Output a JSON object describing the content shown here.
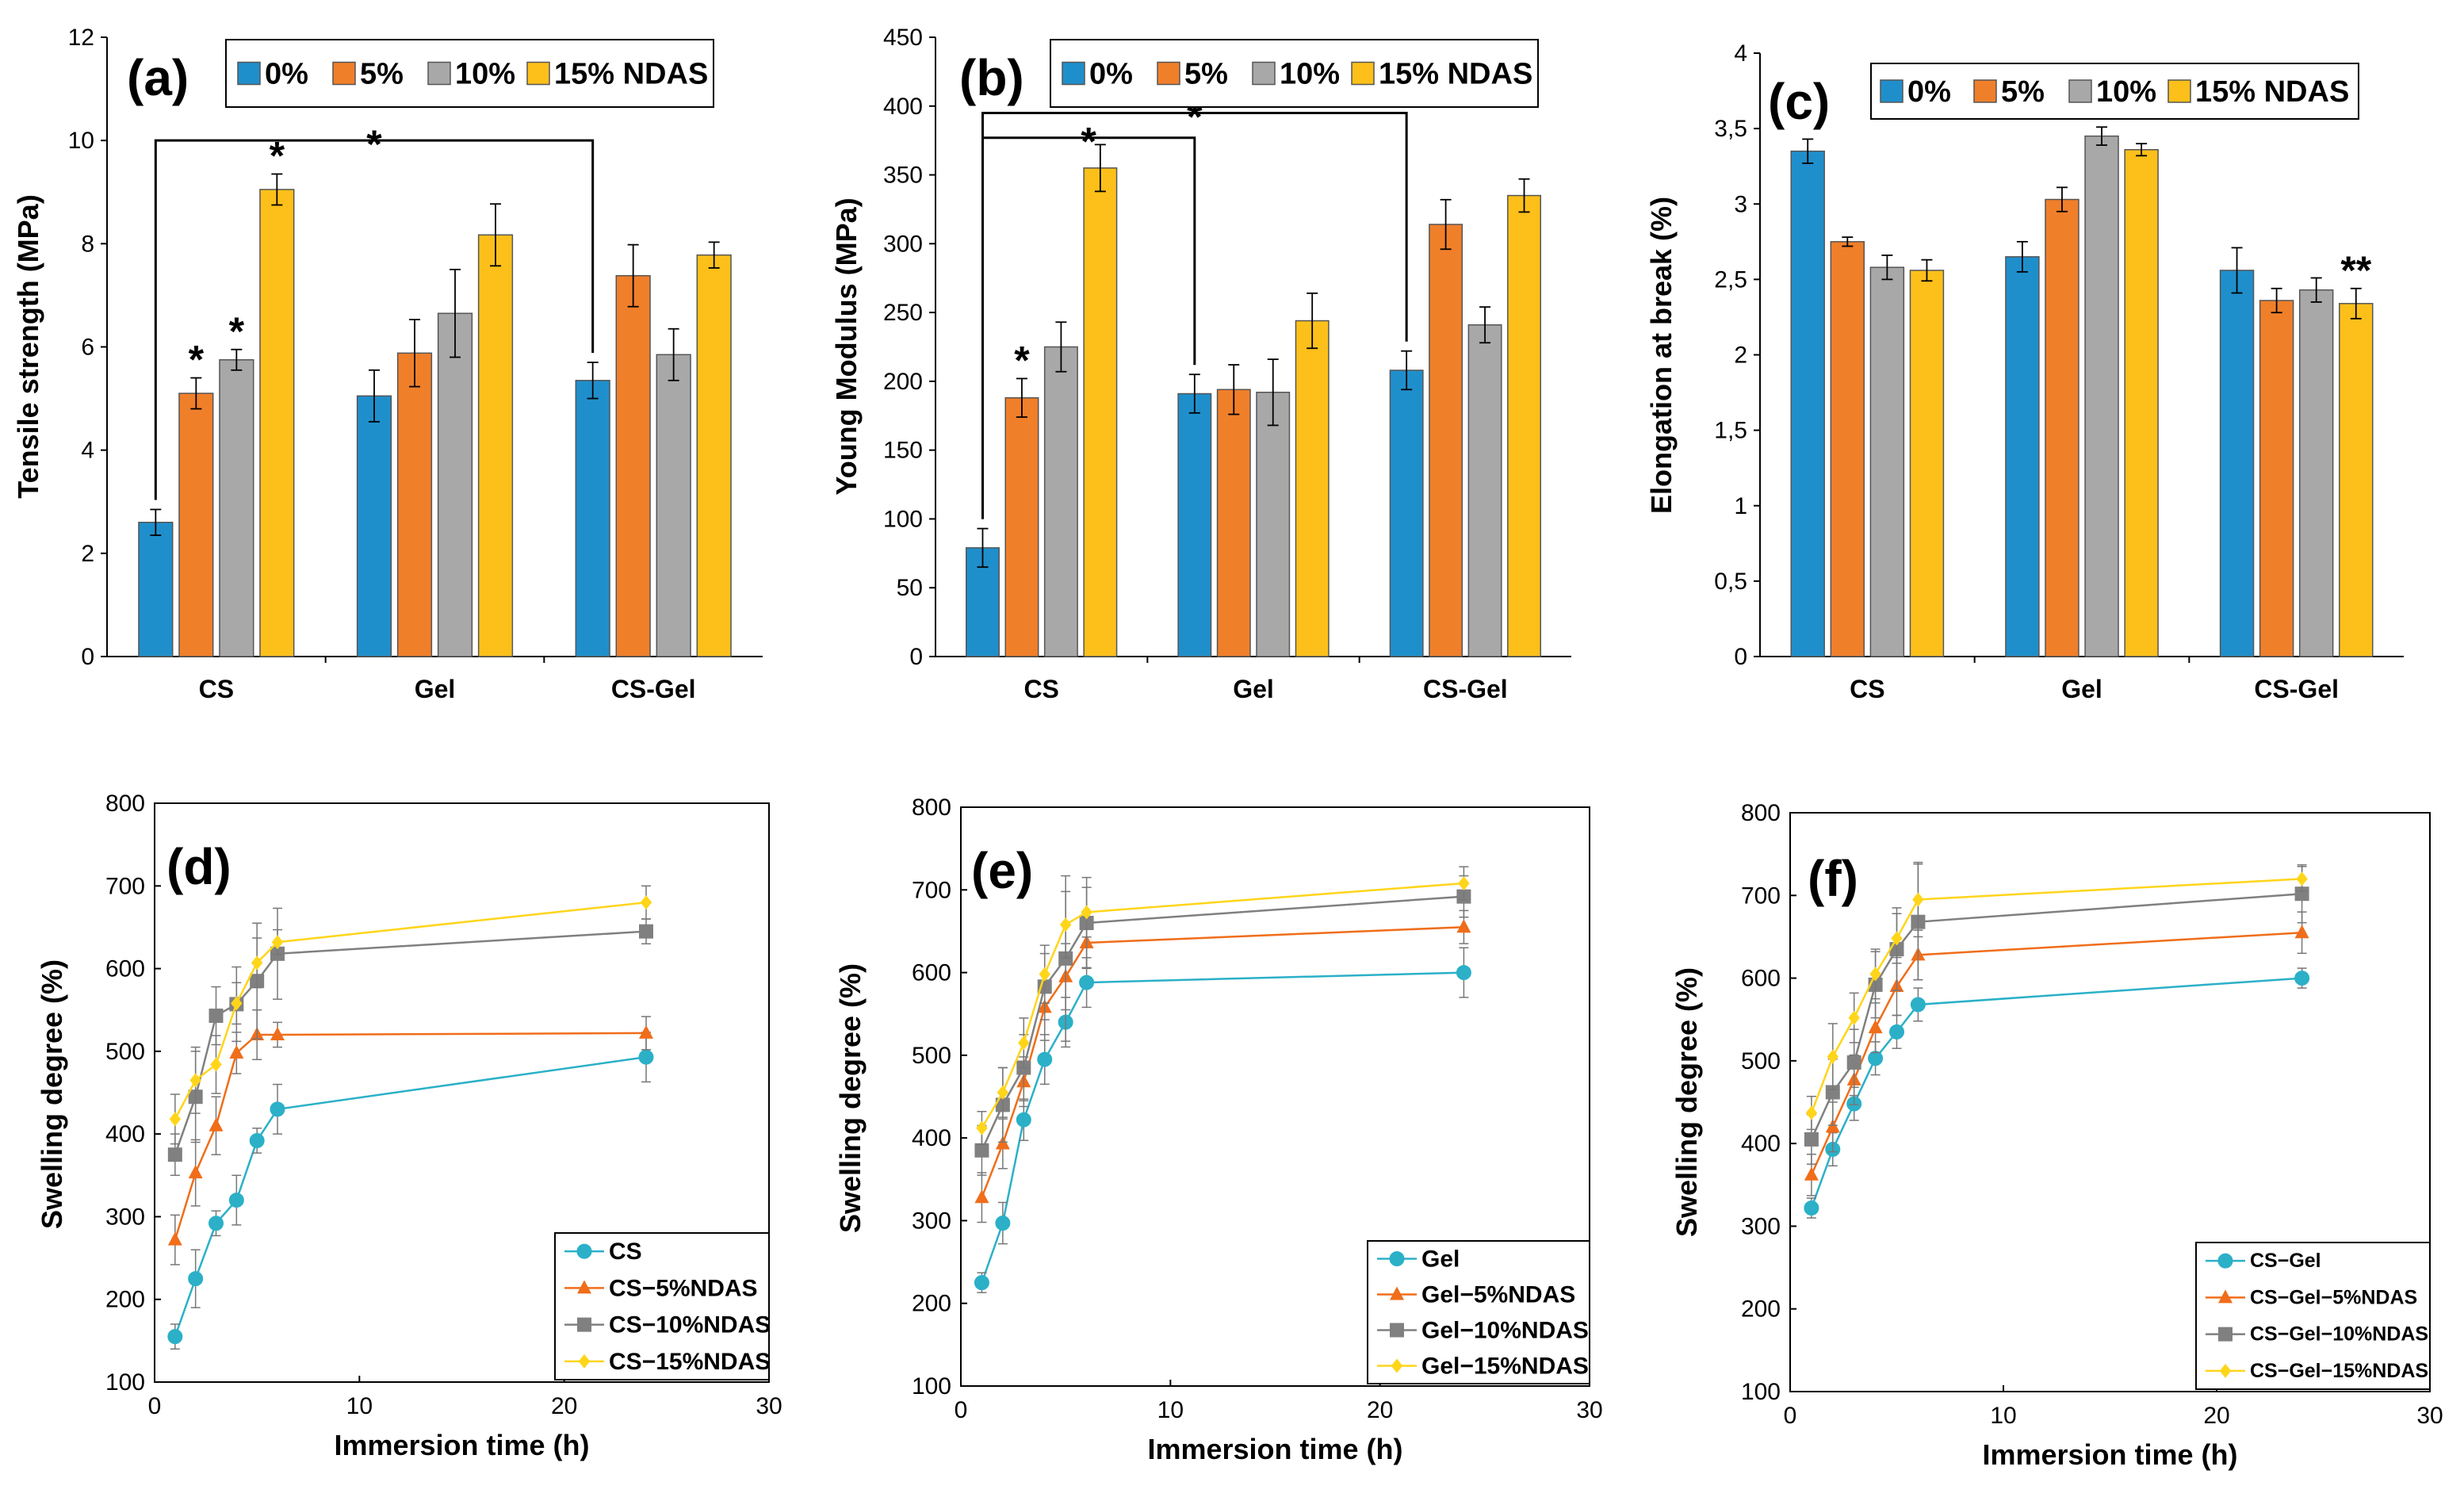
{
  "colors": {
    "c0": "#1f8fcc",
    "c5": "#f07f2a",
    "c10": "#a8a8a8",
    "c15": "#fdc01a",
    "s_base": "#2bb0c8",
    "s_5": "#f06d1a",
    "s_10": "#808080",
    "s_15": "#ffd51a"
  },
  "chart_data": [
    {
      "id": "a",
      "type": "bar",
      "label": "(a)",
      "ylabel": "Tensile strength (MPa)",
      "ylim": [
        0,
        12
      ],
      "yticks": [
        0,
        2,
        4,
        6,
        8,
        10,
        12
      ],
      "ytick_labels": [
        "0",
        "2",
        "4",
        "6",
        "8",
        "10",
        "12"
      ],
      "categories": [
        "CS",
        "Gel",
        "CS-Gel"
      ],
      "legend": [
        "0%",
        "5%",
        "10%",
        "15% NDAS"
      ],
      "series": [
        {
          "name": "0%",
          "values": [
            2.6,
            5.05,
            5.35
          ],
          "errors": [
            0.25,
            0.5,
            0.35
          ]
        },
        {
          "name": "5%",
          "values": [
            5.1,
            5.88,
            7.38
          ],
          "errors": [
            0.3,
            0.65,
            0.6
          ]
        },
        {
          "name": "10%",
          "values": [
            5.75,
            6.65,
            5.85
          ],
          "errors": [
            0.2,
            0.85,
            0.5
          ]
        },
        {
          "name": "15% NDAS",
          "values": [
            9.05,
            8.17,
            7.78
          ],
          "errors": [
            0.3,
            0.6,
            0.25
          ]
        }
      ],
      "stars": [
        {
          "group": 0,
          "series": 1,
          "text": "*"
        },
        {
          "group": 0,
          "series": 2,
          "text": "*"
        },
        {
          "group": 0,
          "series": 3,
          "text": "*"
        }
      ],
      "brackets": [
        {
          "from": [
            0,
            0
          ],
          "to": [
            2,
            0
          ],
          "level": 10.0,
          "text": "*"
        }
      ]
    },
    {
      "id": "b",
      "type": "bar",
      "label": "(b)",
      "ylabel": "Young Modulus (MPa)",
      "ylim": [
        0,
        450
      ],
      "yticks": [
        0,
        50,
        100,
        150,
        200,
        250,
        300,
        350,
        400,
        450
      ],
      "ytick_labels": [
        "0",
        "50",
        "100",
        "150",
        "200",
        "250",
        "300",
        "350",
        "400",
        "450"
      ],
      "categories": [
        "CS",
        "Gel",
        "CS-Gel"
      ],
      "legend": [
        "0%",
        "5%",
        "10%",
        "15% NDAS"
      ],
      "series": [
        {
          "name": "0%",
          "values": [
            79,
            191,
            208
          ],
          "errors": [
            14,
            14,
            14
          ]
        },
        {
          "name": "5%",
          "values": [
            188,
            194,
            314
          ],
          "errors": [
            14,
            18,
            18
          ]
        },
        {
          "name": "10%",
          "values": [
            225,
            192,
            241
          ],
          "errors": [
            18,
            24,
            13
          ]
        },
        {
          "name": "15% NDAS",
          "values": [
            355,
            244,
            335
          ],
          "errors": [
            17,
            20,
            12
          ]
        }
      ],
      "stars": [
        {
          "group": 0,
          "series": 1,
          "text": "*"
        }
      ],
      "brackets": [
        {
          "from": [
            0,
            0
          ],
          "to": [
            1,
            0
          ],
          "level": 377,
          "text": "*"
        },
        {
          "from": [
            0,
            0
          ],
          "to": [
            2,
            0
          ],
          "level": 395,
          "text": "*"
        }
      ]
    },
    {
      "id": "c",
      "type": "bar",
      "label": "(c)",
      "ylabel": "Elongation at break (%)",
      "ylim": [
        0,
        4
      ],
      "yticks": [
        0,
        0.5,
        1,
        1.5,
        2,
        2.5,
        3,
        3.5,
        4
      ],
      "ytick_labels": [
        "0",
        "0,5",
        "1",
        "1,5",
        "2",
        "2,5",
        "3",
        "3,5",
        "4"
      ],
      "categories": [
        "CS",
        "Gel",
        "CS-Gel"
      ],
      "legend": [
        "0%",
        "5%",
        "10%",
        "15% NDAS"
      ],
      "series": [
        {
          "name": "0%",
          "values": [
            3.35,
            2.65,
            2.56
          ],
          "errors": [
            0.08,
            0.1,
            0.15
          ]
        },
        {
          "name": "5%",
          "values": [
            2.75,
            3.03,
            2.36
          ],
          "errors": [
            0.03,
            0.08,
            0.08
          ]
        },
        {
          "name": "10%",
          "values": [
            2.58,
            3.45,
            2.43
          ],
          "errors": [
            0.08,
            0.06,
            0.08
          ]
        },
        {
          "name": "15% NDAS",
          "values": [
            2.56,
            3.36,
            2.34
          ],
          "errors": [
            0.07,
            0.04,
            0.1
          ]
        }
      ],
      "stars": [
        {
          "group": 2,
          "series": 3,
          "text": "**"
        }
      ],
      "brackets": []
    },
    {
      "id": "d",
      "type": "line",
      "label": "(d)",
      "xlabel": "Immersion time (h)",
      "ylabel": "Swelling degree (%)",
      "xlim": [
        0,
        30
      ],
      "ylim": [
        100,
        800
      ],
      "xticks": [
        0,
        10,
        20,
        30
      ],
      "xtick_labels": [
        "0",
        "10",
        "20",
        "30"
      ],
      "yticks": [
        100,
        200,
        300,
        400,
        500,
        600,
        700,
        800
      ],
      "ytick_labels": [
        "100",
        "200",
        "300",
        "400",
        "500",
        "600",
        "700",
        "800"
      ],
      "x": [
        1,
        2,
        3,
        4,
        5,
        6,
        24
      ],
      "series": [
        {
          "name": "CS",
          "marker": "circle",
          "values": [
            155,
            225,
            292,
            320,
            392,
            430,
            493
          ],
          "errors": [
            15,
            35,
            15,
            30,
            15,
            30,
            30
          ]
        },
        {
          "name": "CS−5%NDAS",
          "marker": "triangle",
          "values": [
            272,
            353,
            410,
            498,
            520,
            520,
            522
          ],
          "errors": [
            30,
            40,
            35,
            25,
            30,
            15,
            20
          ]
        },
        {
          "name": "CS−10%NDAS",
          "marker": "square",
          "values": [
            375,
            445,
            543,
            557,
            585,
            618,
            645
          ],
          "errors": [
            25,
            55,
            35,
            45,
            70,
            55,
            15
          ]
        },
        {
          "name": "CS−15%NDAS",
          "marker": "diamond",
          "values": [
            418,
            465,
            484,
            558,
            607,
            632,
            680
          ],
          "errors": [
            30,
            40,
            35,
            25,
            30,
            15,
            20
          ]
        }
      ]
    },
    {
      "id": "e",
      "type": "line",
      "label": "(e)",
      "xlabel": "Immersion time (h)",
      "ylabel": "Swelling degree (%)",
      "xlim": [
        0,
        30
      ],
      "ylim": [
        100,
        800
      ],
      "xticks": [
        0,
        10,
        20,
        30
      ],
      "xtick_labels": [
        "0",
        "10",
        "20",
        "30"
      ],
      "yticks": [
        100,
        200,
        300,
        400,
        500,
        600,
        700,
        800
      ],
      "ytick_labels": [
        "100",
        "200",
        "300",
        "400",
        "500",
        "600",
        "700",
        "800"
      ],
      "x": [
        1,
        2,
        3,
        4,
        5,
        6,
        24
      ],
      "series": [
        {
          "name": "Gel",
          "marker": "circle",
          "values": [
            225,
            297,
            422,
            495,
            540,
            588,
            600
          ],
          "errors": [
            12,
            25,
            25,
            30,
            30,
            30,
            30
          ]
        },
        {
          "name": "Gel−5%NDAS",
          "marker": "triangle",
          "values": [
            328,
            393,
            468,
            558,
            595,
            636,
            655
          ],
          "errors": [
            30,
            30,
            30,
            40,
            40,
            30,
            20
          ]
        },
        {
          "name": "Gel−10%NDAS",
          "marker": "square",
          "values": [
            385,
            440,
            485,
            583,
            617,
            660,
            692
          ],
          "errors": [
            30,
            45,
            40,
            40,
            100,
            55,
            25
          ]
        },
        {
          "name": "Gel−15%NDAS",
          "marker": "diamond",
          "values": [
            412,
            455,
            515,
            598,
            658,
            673,
            708
          ],
          "errors": [
            20,
            30,
            30,
            35,
            40,
            30,
            20
          ]
        }
      ]
    },
    {
      "id": "f",
      "type": "line",
      "label": "(f)",
      "xlabel": "Immersion time (h)",
      "ylabel": "Swelling degree (%)",
      "xlim": [
        0,
        30
      ],
      "ylim": [
        100,
        800
      ],
      "xticks": [
        0,
        10,
        20,
        30
      ],
      "xtick_labels": [
        "0",
        "10",
        "20",
        "30"
      ],
      "yticks": [
        100,
        200,
        300,
        400,
        500,
        600,
        700,
        800
      ],
      "ytick_labels": [
        "100",
        "200",
        "300",
        "400",
        "500",
        "600",
        "700",
        "800"
      ],
      "x": [
        1,
        2,
        3,
        4,
        5,
        6,
        24
      ],
      "series": [
        {
          "name": "CS−Gel",
          "marker": "circle",
          "values": [
            322,
            393,
            448,
            503,
            535,
            568,
            600
          ],
          "errors": [
            12,
            20,
            20,
            20,
            20,
            20,
            12
          ]
        },
        {
          "name": "CS−Gel−5%NDAS",
          "marker": "triangle",
          "values": [
            362,
            420,
            477,
            540,
            590,
            628,
            655
          ],
          "errors": [
            25,
            30,
            30,
            30,
            35,
            30,
            25
          ]
        },
        {
          "name": "CS−Gel−10%NDAS",
          "marker": "square",
          "values": [
            405,
            462,
            498,
            592,
            635,
            668,
            702
          ],
          "errors": [
            30,
            40,
            40,
            40,
            50,
            70,
            35
          ]
        },
        {
          "name": "CS−Gel−15%NDAS",
          "marker": "diamond",
          "values": [
            437,
            505,
            552,
            605,
            648,
            695,
            720
          ],
          "errors": [
            20,
            40,
            30,
            30,
            30,
            45,
            15
          ]
        }
      ]
    }
  ]
}
